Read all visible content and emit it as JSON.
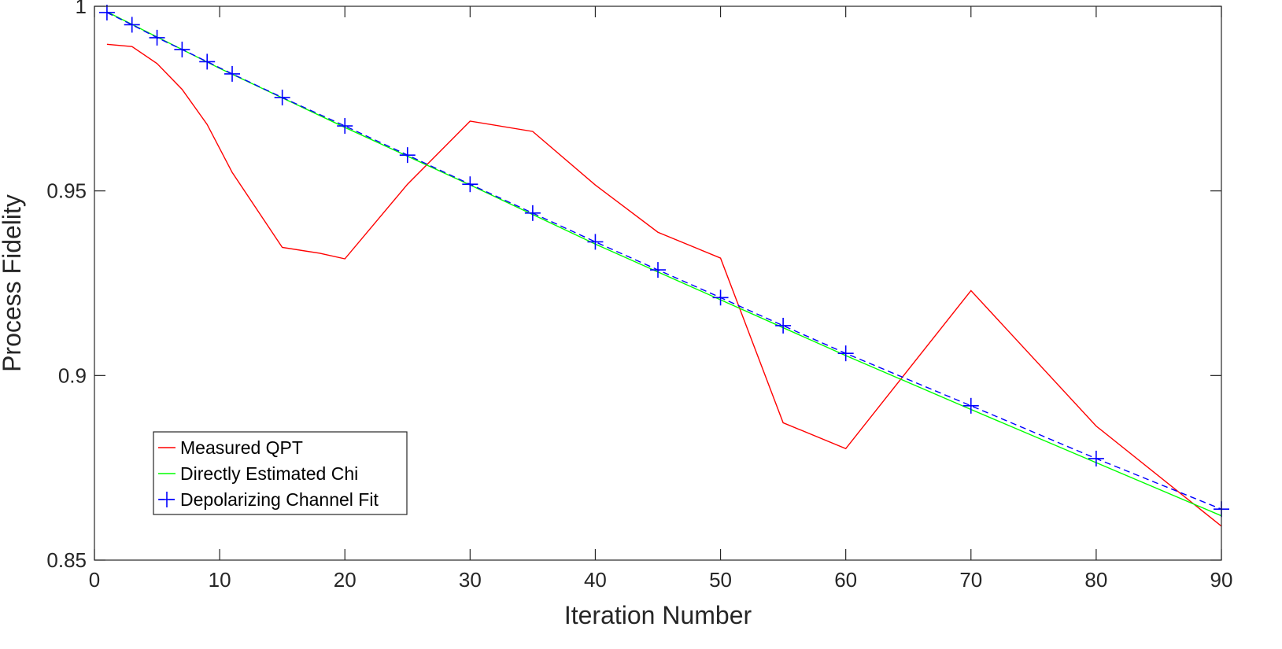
{
  "chart_data": {
    "type": "line",
    "xlabel": "Iteration Number",
    "ylabel": "Process Fidelity",
    "xlim": [
      0,
      90
    ],
    "ylim": [
      0.85,
      1
    ],
    "xticks": [
      0,
      10,
      20,
      30,
      40,
      50,
      60,
      70,
      80,
      90
    ],
    "xtick_labels": [
      "0",
      "10",
      "20",
      "30",
      "40",
      "50",
      "60",
      "70",
      "80",
      "90"
    ],
    "yticks": [
      0.85,
      0.9,
      0.95,
      1
    ],
    "ytick_labels": [
      "0.85",
      "0.9",
      "0.95",
      "1"
    ],
    "grid": false,
    "legend_position": "lower-left",
    "series": [
      {
        "name": "Measured QPT",
        "color": "#ff0000",
        "line_style": "solid",
        "marker": "none",
        "x": [
          1,
          3,
          5,
          7,
          9,
          11,
          15,
          18,
          20,
          25,
          30,
          35,
          40,
          45,
          50,
          55,
          60,
          70,
          80,
          90
        ],
        "y": [
          0.9897,
          0.9891,
          0.9845,
          0.9775,
          0.968,
          0.955,
          0.9347,
          0.9331,
          0.9316,
          0.9518,
          0.9689,
          0.9661,
          0.9516,
          0.9388,
          0.9318,
          0.8872,
          0.8802,
          0.923,
          0.8863,
          0.8592
        ]
      },
      {
        "name": "Directly Estimated Chi",
        "color": "#00ff00",
        "line_style": "solid",
        "marker": "none",
        "x": [
          1,
          5,
          10,
          20,
          30,
          40,
          50,
          60,
          70,
          80,
          90
        ],
        "y": [
          0.9985,
          0.9917,
          0.9832,
          0.9672,
          0.9516,
          0.9356,
          0.9205,
          0.9054,
          0.8908,
          0.8764,
          0.862
        ]
      },
      {
        "name": "Depolarizing Channel Fit",
        "color": "#0000ff",
        "line_style": "dashed",
        "marker": "plus",
        "x": [
          1,
          3,
          5,
          7,
          9,
          11,
          15,
          20,
          25,
          30,
          35,
          40,
          45,
          50,
          55,
          60,
          70,
          80,
          90
        ],
        "y": [
          0.9983,
          0.995,
          0.9915,
          0.9883,
          0.985,
          0.9817,
          0.9753,
          0.9676,
          0.9597,
          0.9518,
          0.944,
          0.9362,
          0.9286,
          0.9211,
          0.9135,
          0.906,
          0.8918,
          0.8775,
          0.8638
        ]
      }
    ]
  }
}
